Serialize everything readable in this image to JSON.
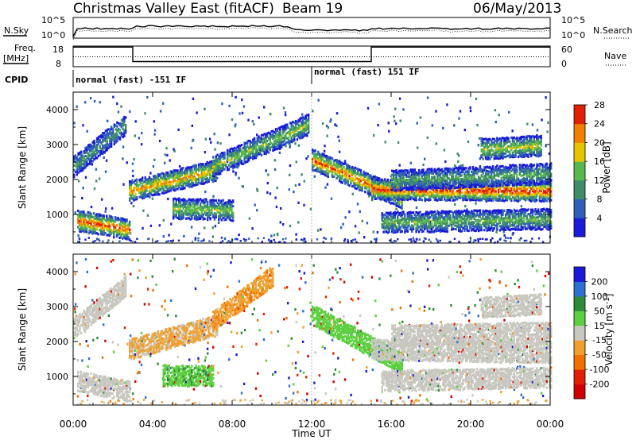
{
  "header": {
    "station": "Christmas Valley East (fitACF)",
    "beam": "Beam 19",
    "date": "06/May/2013"
  },
  "status_panels": {
    "nsky_label": "N.Sky",
    "nsky_scale_top": "10^5",
    "nsky_scale_bottom": "10^0",
    "nsearch_label": "N.Search",
    "freq_label_1": "Freq.",
    "freq_label_2": "[MHz]",
    "freq_left_top": "18",
    "freq_left_bottom": "8",
    "freq_right_top": "60",
    "freq_right_bottom": "0",
    "nave_label": "Nave",
    "cpid_label": "CPID",
    "cpid_segments": [
      {
        "label": "normal (fast) -151 IF",
        "start_hour": 0,
        "end_hour": 12
      },
      {
        "label": "normal (fast) 151 IF",
        "start_hour": 12,
        "end_hour": 24
      }
    ],
    "freq_mhz_series": [
      {
        "hour": 0,
        "freq": 17.5
      },
      {
        "hour": 3,
        "freq": 17.5
      },
      {
        "hour": 3,
        "freq": 10.5
      },
      {
        "hour": 15,
        "freq": 10.5
      },
      {
        "hour": 15,
        "freq": 17.5
      },
      {
        "hour": 24,
        "freq": 17.5
      }
    ]
  },
  "chart_data": [
    {
      "type": "heatmap",
      "ylabel": "Slant Range [km]",
      "xlabel": "Time UT",
      "x_ticks": [
        "00:00",
        "04:00",
        "08:00",
        "12:00",
        "16:00",
        "20:00",
        "00:00"
      ],
      "y_ticks": [
        "1000",
        "2000",
        "3000",
        "4000"
      ],
      "ylim": [
        180,
        4500
      ],
      "xlim_hours": [
        0,
        24
      ],
      "colorbar": {
        "label": "Power [dB]",
        "ticks": [
          "4",
          "8",
          "12",
          "16",
          "20",
          "24",
          "28"
        ],
        "colors": [
          "#1a1ad8",
          "#2f5fb8",
          "#3f8b6a",
          "#59b84d",
          "#e8c400",
          "#f08000",
          "#e02000"
        ]
      },
      "echo_bands": [
        {
          "name": "early-morning",
          "start_hour": 0.2,
          "end_hour": 2.8,
          "range_km": [
            850,
            600
          ],
          "level": 0.9
        },
        {
          "name": "morning-upper",
          "start_hour": 0.0,
          "end_hour": 2.6,
          "range_km": [
            2400,
            3600
          ],
          "level": 0.4
        },
        {
          "name": "main-ascending",
          "start_hour": 2.8,
          "end_hour": 7.2,
          "range_km": [
            1700,
            2300
          ],
          "level": 0.75
        },
        {
          "name": "main-arc",
          "start_hour": 7.0,
          "end_hour": 11.8,
          "range_km": [
            2400,
            3600
          ],
          "level": 0.55
        },
        {
          "name": "lower-arc",
          "start_hour": 5.0,
          "end_hour": 8.0,
          "range_km": [
            1200,
            1150
          ],
          "level": 0.55
        },
        {
          "name": "descending",
          "start_hour": 12.0,
          "end_hour": 16.5,
          "range_km": [
            2600,
            1500
          ],
          "level": 0.85
        },
        {
          "name": "afternoon-main",
          "start_hour": 15.0,
          "end_hour": 24.0,
          "range_km": [
            1750,
            1700
          ],
          "level": 0.95
        },
        {
          "name": "afternoon-upper",
          "start_hour": 16.0,
          "end_hour": 24.0,
          "range_km": [
            2000,
            2200
          ],
          "level": 0.45
        },
        {
          "name": "evening-high",
          "start_hour": 20.5,
          "end_hour": 23.5,
          "range_km": [
            2900,
            3000
          ],
          "level": 0.6
        },
        {
          "name": "afternoon-low",
          "start_hour": 15.5,
          "end_hour": 24.0,
          "range_km": [
            800,
            900
          ],
          "level": 0.5
        }
      ]
    },
    {
      "type": "heatmap",
      "ylabel": "Slant Range [km]",
      "xlabel": "Time UT",
      "x_ticks": [
        "00:00",
        "04:00",
        "08:00",
        "12:00",
        "16:00",
        "20:00",
        "00:00"
      ],
      "y_ticks": [
        "1000",
        "2000",
        "3000",
        "4000"
      ],
      "ylim": [
        180,
        4500
      ],
      "xlim_hours": [
        0,
        24
      ],
      "colorbar": {
        "label": "Velocity [m s-1]",
        "ticks": [
          "200",
          "100",
          "50",
          "15",
          "-15",
          "-50",
          "-100",
          "-200"
        ],
        "colors": [
          "#1a1ad8",
          "#2f6fd0",
          "#2f8b3a",
          "#5cd040",
          "#c8c8c0",
          "#f0a030",
          "#f07000",
          "#e02000",
          "#d00000"
        ]
      },
      "echo_bands": [
        {
          "name": "early-morning",
          "start_hour": 0.2,
          "end_hour": 2.8,
          "range_km": [
            900,
            600
          ],
          "velocity": 0
        },
        {
          "name": "morning-upper",
          "start_hour": 0.0,
          "end_hour": 2.6,
          "range_km": [
            2400,
            3600
          ],
          "velocity": 0
        },
        {
          "name": "green-patch",
          "start_hour": 4.5,
          "end_hour": 7.0,
          "range_km": [
            1050,
            1050
          ],
          "velocity": 40
        },
        {
          "name": "main-ascending",
          "start_hour": 2.8,
          "end_hour": 7.2,
          "range_km": [
            1800,
            2500
          ],
          "velocity": -20
        },
        {
          "name": "main-arc",
          "start_hour": 7.0,
          "end_hour": 10.0,
          "range_km": [
            2600,
            3900
          ],
          "velocity": -40
        },
        {
          "name": "descending",
          "start_hour": 12.0,
          "end_hour": 16.5,
          "range_km": [
            2800,
            1400
          ],
          "velocity": 35
        },
        {
          "name": "afternoon-main",
          "start_hour": 15.0,
          "end_hour": 24.0,
          "range_km": [
            1800,
            1700
          ],
          "velocity": 0
        },
        {
          "name": "afternoon-upper",
          "start_hour": 16.0,
          "end_hour": 24.0,
          "range_km": [
            2200,
            2300
          ],
          "velocity": 0
        },
        {
          "name": "evening-high",
          "start_hour": 20.5,
          "end_hour": 23.5,
          "range_km": [
            3000,
            3100
          ],
          "velocity": 0
        },
        {
          "name": "afternoon-low",
          "start_hour": 15.5,
          "end_hour": 24.0,
          "range_km": [
            900,
            1000
          ],
          "velocity": 0
        }
      ]
    }
  ]
}
